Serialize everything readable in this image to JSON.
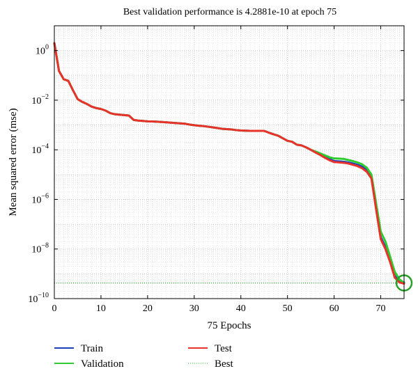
{
  "chart_data": {
    "type": "line",
    "title": "Best validation performance is 4.2881e-10 at epoch 75",
    "xlabel": "75 Epochs",
    "ylabel": "Mean squared error (mse)",
    "yscale": "log",
    "xlim": [
      0,
      75
    ],
    "ylim": [
      1e-10,
      10
    ],
    "grid": true,
    "legend_placement": "bottom",
    "x_ticks": [
      0,
      10,
      20,
      30,
      40,
      50,
      60,
      70
    ],
    "y_ticks": [
      {
        "value": 1,
        "mantissa": "10",
        "exp": "0"
      },
      {
        "value": 0.01,
        "mantissa": "10",
        "exp": "−2"
      },
      {
        "value": 0.0001,
        "mantissa": "10",
        "exp": "−4"
      },
      {
        "value": 1e-06,
        "mantissa": "10",
        "exp": "−6"
      },
      {
        "value": 1e-08,
        "mantissa": "10",
        "exp": "−8"
      },
      {
        "value": 1e-10,
        "mantissa": "10",
        "exp": "−10"
      }
    ],
    "series": [
      {
        "name": "Train",
        "color": "#1f3fb8",
        "dash": "solid",
        "x": [
          0,
          1,
          2,
          3,
          4,
          5,
          6,
          7,
          8,
          9,
          10,
          11,
          12,
          13,
          14,
          15,
          16,
          17,
          18,
          19,
          20,
          21,
          22,
          23,
          24,
          25,
          26,
          27,
          28,
          29,
          30,
          31,
          32,
          33,
          34,
          35,
          36,
          37,
          38,
          39,
          40,
          41,
          42,
          43,
          44,
          45,
          46,
          47,
          48,
          49,
          50,
          51,
          52,
          53,
          54,
          55,
          56,
          57,
          58,
          59,
          60,
          61,
          62,
          63,
          64,
          65,
          66,
          67,
          68,
          69,
          70,
          71,
          72,
          73,
          74,
          75
        ],
        "y": [
          2,
          0.15,
          0.07,
          0.06,
          0.025,
          0.011,
          0.0085,
          0.007,
          0.0055,
          0.0048,
          0.0044,
          0.0038,
          0.003,
          0.0027,
          0.0026,
          0.0025,
          0.0024,
          0.0016,
          0.0015,
          0.00145,
          0.0014,
          0.00138,
          0.00135,
          0.00132,
          0.00128,
          0.00124,
          0.0012,
          0.00116,
          0.00112,
          0.00104,
          0.00098,
          0.00093,
          0.0009,
          0.00085,
          0.0008,
          0.00075,
          0.0007,
          0.00068,
          0.00066,
          0.00062,
          0.0006,
          0.00059,
          0.00058,
          0.00058,
          0.00058,
          0.00058,
          0.00049,
          0.00042,
          0.00037,
          0.00029,
          0.00023,
          0.00021,
          0.00016,
          0.00015,
          0.000125,
          0.0001,
          8e-05,
          6.5e-05,
          5.2e-05,
          4.2e-05,
          3.5e-05,
          3.4e-05,
          3.3e-05,
          3.1e-05,
          2.8e-05,
          2.5e-05,
          2.1e-05,
          1.5e-05,
          8e-06,
          5e-07,
          3e-08,
          1.2e-08,
          3.5e-09,
          8e-10,
          5e-10,
          4.5e-10
        ]
      },
      {
        "name": "Validation",
        "color": "#2ecc2e",
        "dash": "solid",
        "x": [
          0,
          1,
          2,
          3,
          4,
          5,
          6,
          7,
          8,
          9,
          10,
          11,
          12,
          13,
          14,
          15,
          16,
          17,
          18,
          19,
          20,
          21,
          22,
          23,
          24,
          25,
          26,
          27,
          28,
          29,
          30,
          31,
          32,
          33,
          34,
          35,
          36,
          37,
          38,
          39,
          40,
          41,
          42,
          43,
          44,
          45,
          46,
          47,
          48,
          49,
          50,
          51,
          52,
          53,
          54,
          55,
          56,
          57,
          58,
          59,
          60,
          61,
          62,
          63,
          64,
          65,
          66,
          67,
          68,
          69,
          70,
          71,
          72,
          73,
          74,
          75
        ],
        "y": [
          2,
          0.15,
          0.07,
          0.06,
          0.025,
          0.011,
          0.0085,
          0.007,
          0.0055,
          0.0048,
          0.0044,
          0.0038,
          0.003,
          0.0027,
          0.0026,
          0.0025,
          0.0024,
          0.0016,
          0.0015,
          0.00145,
          0.0014,
          0.00138,
          0.00135,
          0.00132,
          0.00128,
          0.00124,
          0.0012,
          0.00116,
          0.00112,
          0.00104,
          0.00098,
          0.00093,
          0.0009,
          0.00085,
          0.0008,
          0.00075,
          0.0007,
          0.00068,
          0.00066,
          0.00062,
          0.0006,
          0.00059,
          0.00058,
          0.00058,
          0.00058,
          0.00058,
          0.00049,
          0.00042,
          0.00037,
          0.00029,
          0.00023,
          0.00021,
          0.00016,
          0.00015,
          0.000125,
          0.0001,
          8.5e-05,
          7.2e-05,
          6e-05,
          5e-05,
          4.5e-05,
          4.4e-05,
          4.3e-05,
          3.9e-05,
          3.5e-05,
          3.1e-05,
          2.6e-05,
          1.9e-05,
          1e-05,
          7e-07,
          5e-08,
          2e-08,
          5e-09,
          1.2e-09,
          6e-10,
          4.3e-10
        ]
      },
      {
        "name": "Test",
        "color": "#e8332a",
        "dash": "solid",
        "x": [
          0,
          1,
          2,
          3,
          4,
          5,
          6,
          7,
          8,
          9,
          10,
          11,
          12,
          13,
          14,
          15,
          16,
          17,
          18,
          19,
          20,
          21,
          22,
          23,
          24,
          25,
          26,
          27,
          28,
          29,
          30,
          31,
          32,
          33,
          34,
          35,
          36,
          37,
          38,
          39,
          40,
          41,
          42,
          43,
          44,
          45,
          46,
          47,
          48,
          49,
          50,
          51,
          52,
          53,
          54,
          55,
          56,
          57,
          58,
          59,
          60,
          61,
          62,
          63,
          64,
          65,
          66,
          67,
          68,
          69,
          70,
          71,
          72,
          73,
          74,
          75
        ],
        "y": [
          2,
          0.15,
          0.07,
          0.06,
          0.025,
          0.011,
          0.0085,
          0.007,
          0.0055,
          0.0048,
          0.0044,
          0.0038,
          0.003,
          0.0027,
          0.0026,
          0.0025,
          0.0024,
          0.0016,
          0.0015,
          0.00145,
          0.0014,
          0.00138,
          0.00135,
          0.00132,
          0.00128,
          0.00124,
          0.0012,
          0.00116,
          0.00112,
          0.00104,
          0.00098,
          0.00093,
          0.0009,
          0.00085,
          0.0008,
          0.00075,
          0.0007,
          0.00068,
          0.00066,
          0.00062,
          0.0006,
          0.00059,
          0.00058,
          0.00058,
          0.00058,
          0.00058,
          0.00049,
          0.00042,
          0.00037,
          0.00029,
          0.00023,
          0.00021,
          0.00016,
          0.00015,
          0.000125,
          0.0001,
          7.8e-05,
          6.2e-05,
          4.8e-05,
          3.8e-05,
          3.2e-05,
          3.1e-05,
          3e-05,
          2.8e-05,
          2.5e-05,
          2.2e-05,
          1.8e-05,
          1.3e-05,
          7e-06,
          4e-07,
          2.5e-08,
          1e-08,
          3e-09,
          7e-10,
          4.5e-10,
          4e-10
        ]
      },
      {
        "name": "Best",
        "color": "#2ecc2e",
        "dash": "dotted"
      }
    ],
    "best_marker": {
      "x": 75,
      "y": 4.2881e-10,
      "color": "#2aa02a"
    },
    "legend_columns": [
      [
        "Train",
        "Validation"
      ],
      [
        "Test",
        "Best"
      ]
    ]
  }
}
